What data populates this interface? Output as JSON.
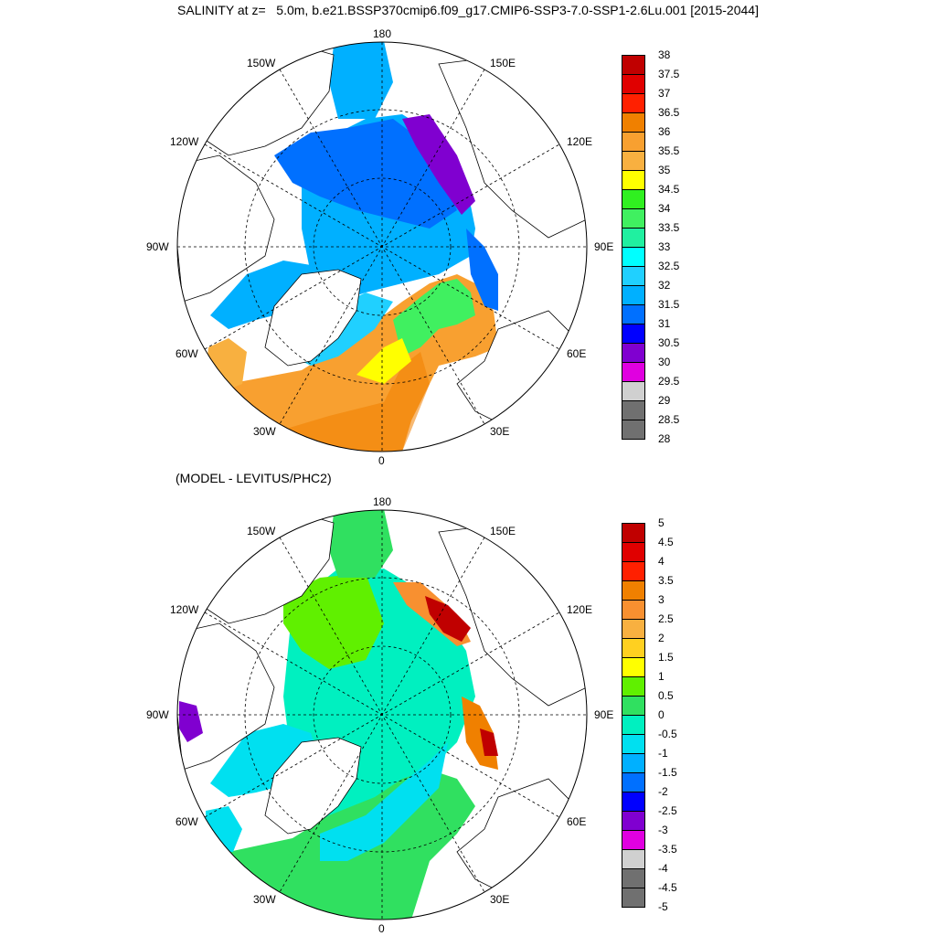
{
  "title": "SALINITY at z=   5.0m, b.e21.BSSP370cmip6.f09_g17.CMIP6-SSP3-7.0-SSP1-2.6Lu.001 [2015-2044]",
  "subtitle": "(MODEL - LEVITUS/PHC2)",
  "longitude_labels": [
    "180",
    "150E",
    "120E",
    "90E",
    "60E",
    "30E",
    "0",
    "30W",
    "60W",
    "90W",
    "120W",
    "150W"
  ],
  "colorbars": [
    {
      "name": "salinity",
      "labels": [
        "38",
        "37.5",
        "37",
        "36.5",
        "36",
        "35.5",
        "35",
        "34.5",
        "34",
        "33.5",
        "33",
        "32.5",
        "32",
        "31.5",
        "31",
        "30.5",
        "30",
        "29.5",
        "29",
        "28.5",
        "28"
      ],
      "colors": [
        "#c00000",
        "#e00000",
        "#ff2000",
        "#f08000",
        "#f8a030",
        "#f8b040",
        "#ffff00",
        "#30f020",
        "#40f060",
        "#20f0a0",
        "#00ffff",
        "#20d0ff",
        "#00b0ff",
        "#0070ff",
        "#0000ff",
        "#8000d0",
        "#e000e0",
        "#d0d0d0",
        "#707070",
        "#707070"
      ]
    },
    {
      "name": "difference",
      "labels": [
        "5",
        "4.5",
        "4",
        "3.5",
        "3",
        "2.5",
        "2",
        "1.5",
        "1",
        "0.5",
        "0",
        "-0.5",
        "-1",
        "-1.5",
        "-2",
        "-2.5",
        "-3",
        "-3.5",
        "-4",
        "-4.5",
        "-5"
      ],
      "colors": [
        "#c00000",
        "#e00000",
        "#ff2000",
        "#f08000",
        "#f89030",
        "#f8b040",
        "#ffd020",
        "#ffff00",
        "#60f000",
        "#30e060",
        "#00f0c0",
        "#00e0f0",
        "#00b0ff",
        "#0070ff",
        "#0000ff",
        "#8000d0",
        "#e000e0",
        "#d0d0d0",
        "#707070",
        "#707070"
      ]
    }
  ]
}
